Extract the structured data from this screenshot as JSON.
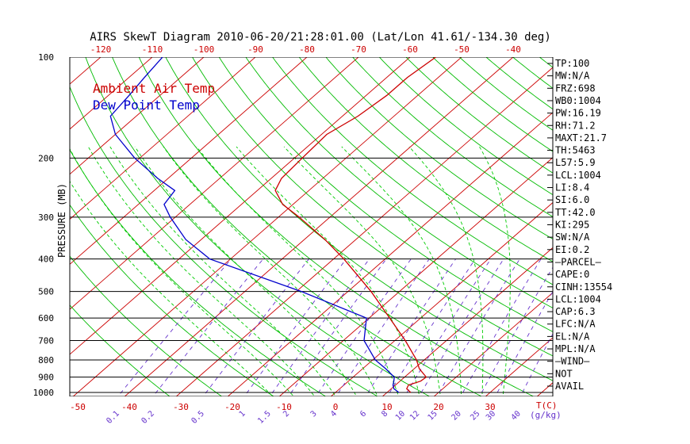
{
  "colors": {
    "temp": "#cc0000",
    "dew": "#0000cc",
    "isotherm": "#cc0000",
    "dry_adiabat": "#00bb00",
    "moist_adiabat": "#00cc00",
    "mixing_ratio": "#6633cc",
    "isobar": "#000000",
    "axis_top": "#cc0000",
    "axis_bottom": "#cc0000",
    "mix_label": "#6633cc"
  },
  "chart_data": {
    "type": "line",
    "chart_kind": "skew-t log-p",
    "title": "AIRS SkewT Diagram 2010-06-20/21:28:01.00 (Lat/Lon 41.61/-134.30 deg)",
    "ylabel": "PRESSURE (MB)",
    "xlabel": "T(C)",
    "mix_unit_label": "(g/kg)",
    "y_scale": "log",
    "ylim": [
      1000,
      100
    ],
    "xlim_bottom_left": -50,
    "xlim_bottom_right": 40,
    "grid": true,
    "legend_position": "top-left",
    "legend": [
      {
        "name": "Ambient Air Temp",
        "color": "#cc0000"
      },
      {
        "name": "Dew Point Temp",
        "color": "#0000cc"
      }
    ],
    "pressure_ticks": [
      100,
      200,
      300,
      400,
      500,
      600,
      700,
      800,
      900,
      1000
    ],
    "pressure_tick_labels": [
      "100",
      "200",
      "300",
      "400",
      "500",
      "600",
      "700",
      "800",
      "900",
      "1000"
    ],
    "top_temp_ticks": [
      -120,
      -110,
      -100,
      -90,
      -80,
      -70,
      -60,
      -50,
      -40
    ],
    "top_temp_tick_labels": [
      "-120",
      "-110",
      "-100",
      "-90",
      "-80",
      "-70",
      "-60",
      "-50",
      "-40"
    ],
    "bottom_temp_ticks": [
      -50,
      -40,
      -30,
      -20,
      -10,
      0,
      10,
      20,
      30,
      40
    ],
    "bottom_temp_tick_labels": [
      "-50",
      "-40",
      "-30",
      "-20",
      "-10",
      "0",
      "10",
      "20",
      "30"
    ],
    "mixing_ratio_values": [
      0.1,
      0.2,
      0.5,
      1,
      1.5,
      2,
      3,
      4,
      6,
      8,
      10,
      12,
      15,
      20,
      25,
      30,
      40
    ],
    "mixing_ratio_labels": [
      "0.1",
      "0.2",
      "0.5",
      "1",
      "1.5",
      "2",
      "3",
      "4",
      "6",
      "8",
      "10",
      "12",
      "15",
      "20",
      "25",
      "30",
      "40"
    ],
    "series": [
      {
        "name": "Ambient Air Temp",
        "pressure": [
          1000,
          975,
          950,
          925,
          900,
          850,
          800,
          700,
          600,
          500,
          400,
          350,
          300,
          275,
          250,
          230,
          200,
          170,
          150,
          130,
          115,
          100
        ],
        "temperature": [
          14.6,
          13.0,
          12.5,
          14.0,
          14.2,
          11.0,
          8.5,
          2.0,
          -6.0,
          -15.5,
          -28.0,
          -36.0,
          -46.0,
          -52.0,
          -56.5,
          -58.0,
          -58.5,
          -59.0,
          -57.0,
          -56.0,
          -56.0,
          -55.0
        ]
      },
      {
        "name": "Dew Point Temp",
        "pressure": [
          1000,
          975,
          950,
          925,
          900,
          850,
          800,
          700,
          600,
          500,
          400,
          350,
          300,
          275,
          250,
          230,
          200,
          170,
          150,
          130,
          115,
          100
        ],
        "temperature": [
          12.3,
          10.5,
          9.5,
          8.8,
          8.0,
          4.5,
          0.5,
          -6.0,
          -10.5,
          -29.0,
          -54.0,
          -63.0,
          -71.0,
          -75.0,
          -76.0,
          -82.0,
          -91.0,
          -100.0,
          -105.0,
          -106.0,
          -107.0,
          -108.0
        ]
      }
    ]
  },
  "indices": [
    {
      "label": "TP:100"
    },
    {
      "label": "MW:N/A"
    },
    {
      "label": "FRZ:698"
    },
    {
      "label": "WB0:1004"
    },
    {
      "label": "PW:16.19"
    },
    {
      "label": "RH:71.2"
    },
    {
      "label": "MAXT:21.7"
    },
    {
      "label": "TH:5463"
    },
    {
      "label": "L57:5.9"
    },
    {
      "label": "LCL:1004"
    },
    {
      "label": "LI:8.4"
    },
    {
      "label": "SI:6.0"
    },
    {
      "label": "TT:42.0"
    },
    {
      "label": "KI:295"
    },
    {
      "label": "SW:N/A"
    },
    {
      "label": "EI:0.2"
    },
    {
      "label": "—PARCEL—"
    },
    {
      "label": "CAPE:0"
    },
    {
      "label": "CINH:13554"
    },
    {
      "label": "LCL:1004"
    },
    {
      "label": "CAP:6.3"
    },
    {
      "label": "LFC:N/A"
    },
    {
      "label": "EL:N/A"
    },
    {
      "label": "MPL:N/A"
    },
    {
      "label": "—WIND—"
    },
    {
      "label": " NOT"
    },
    {
      "label": " AVAIL"
    }
  ]
}
